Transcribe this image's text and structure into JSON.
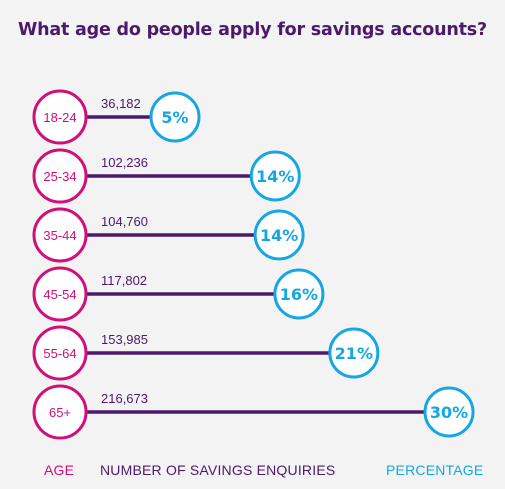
{
  "chart_data": {
    "type": "bar",
    "title": "What age do people apply for savings accounts?",
    "categories": [
      "18-24",
      "25-34",
      "35-44",
      "45-54",
      "55-64",
      "65+"
    ],
    "series": [
      {
        "name": "NUMBER OF SAVINGS ENQUIRIES",
        "values": [
          36182,
          102236,
          104760,
          117802,
          153985,
          216673
        ]
      },
      {
        "name": "PERCENTAGE",
        "values": [
          5,
          14,
          14,
          16,
          21,
          30
        ]
      }
    ],
    "value_labels": [
      "36,182",
      "102,236",
      "104,760",
      "117,802",
      "153,985",
      "216,673"
    ],
    "percent_labels": [
      "5%",
      "14%",
      "14%",
      "16%",
      "21%",
      "30%"
    ],
    "legend": {
      "age": "AGE",
      "count": "NUMBER OF SAVINGS ENQUIRIES",
      "percentage": "PERCENTAGE"
    },
    "colors": {
      "age": "#d10f78",
      "count": "#4b1a6b",
      "percentage": "#16a6e3",
      "background": "#f3f3f3"
    }
  }
}
